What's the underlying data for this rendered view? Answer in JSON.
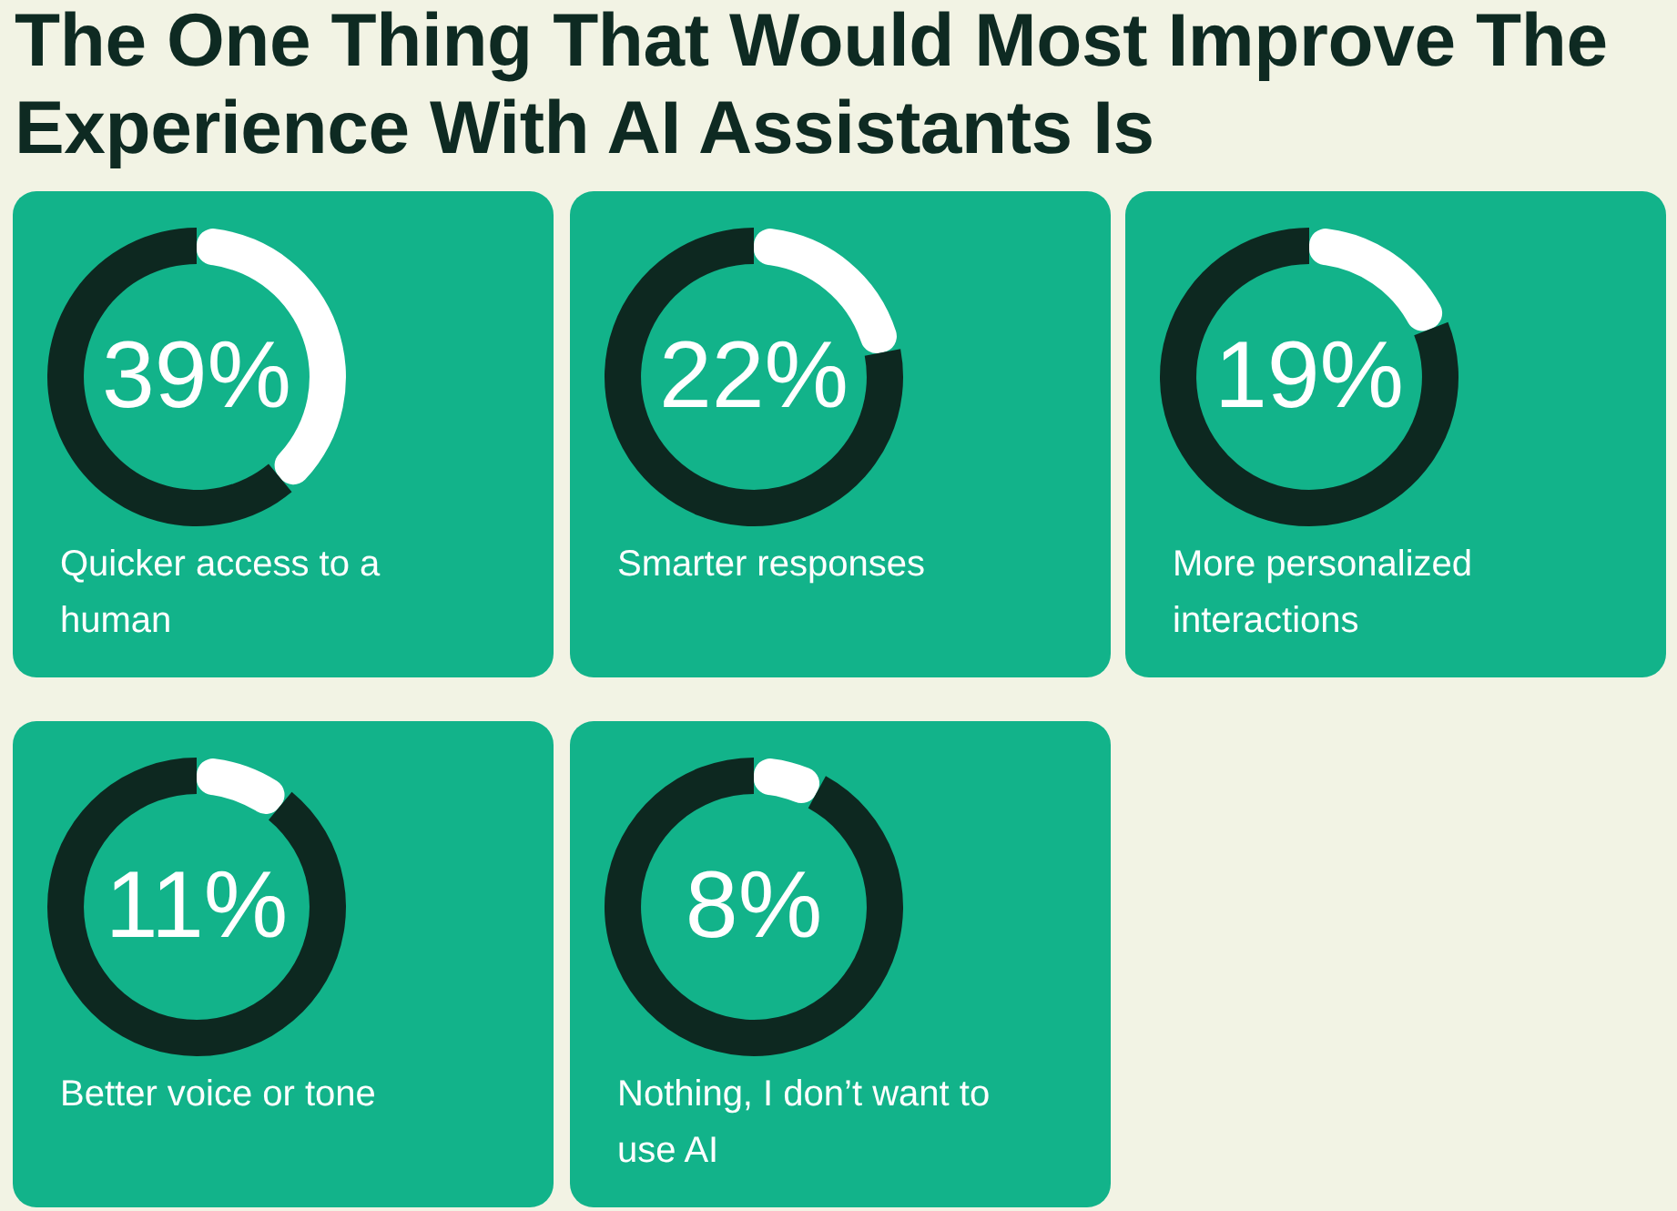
{
  "chart_data": [
    {
      "type": "other",
      "title": "The One Thing That Would Most Improve The Experience With AI Assistants Is"
    },
    {
      "type": "donut",
      "title": "Quicker access to a human",
      "categories": [
        null,
        null
      ],
      "values": [
        39,
        61
      ],
      "colors": [
        "#ffffff",
        "#0d2820"
      ],
      "value_labels": [
        "39%",
        null
      ]
    },
    {
      "type": "donut",
      "title": "Smarter responses",
      "categories": [
        null,
        null
      ],
      "values": [
        22,
        78
      ],
      "colors": [
        "#ffffff",
        "#0d2820"
      ],
      "value_labels": [
        "22%",
        null
      ]
    },
    {
      "type": "donut",
      "title": "More personalized interactions",
      "categories": [
        null,
        null
      ],
      "values": [
        19,
        81
      ],
      "colors": [
        "#ffffff",
        "#0d2820"
      ],
      "value_labels": [
        "19%",
        null
      ]
    },
    {
      "type": "donut",
      "title": "Better voice or tone",
      "categories": [
        null,
        null
      ],
      "values": [
        11,
        89
      ],
      "colors": [
        "#ffffff",
        "#0d2820"
      ],
      "value_labels": [
        "11%",
        null
      ]
    },
    {
      "type": "donut",
      "title": "Nothing, I don’t want to use AI",
      "categories": [
        null,
        null
      ],
      "values": [
        8,
        92
      ],
      "colors": [
        "#ffffff",
        "#0d2820"
      ],
      "value_labels": [
        "8%",
        null
      ]
    }
  ]
}
